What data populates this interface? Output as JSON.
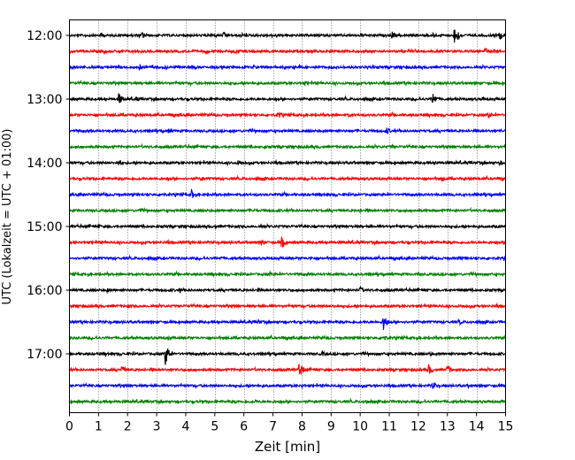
{
  "chart_data": {
    "type": "line",
    "title": "",
    "xlabel": "Zeit  [min]",
    "ylabel": "UTC (Lokalzeit = UTC + 01:00)",
    "xlim": [
      0,
      15
    ],
    "x_ticks": [
      "0",
      "1",
      "2",
      "3",
      "4",
      "5",
      "6",
      "7",
      "8",
      "9",
      "10",
      "11",
      "12",
      "13",
      "14",
      "15"
    ],
    "y_ticks": [
      "12:00",
      "13:00",
      "14:00",
      "15:00",
      "16:00",
      "17:00"
    ],
    "grid": "vertical dotted at each minute",
    "trace_interval_min": 15,
    "color_cycle": [
      "#000000",
      "#ff0000",
      "#0000ff",
      "#008000"
    ],
    "series": [
      {
        "start": "12:00",
        "events": [
          [
            1.1,
            0.25
          ],
          [
            2.5,
            0.35
          ],
          [
            5.3,
            0.3
          ],
          [
            11.1,
            0.4
          ],
          [
            12.5,
            0.35
          ],
          [
            13.25,
            1.0
          ],
          [
            14.8,
            0.4
          ]
        ]
      },
      {
        "start": "12:15",
        "events": [
          [
            1.2,
            0.2
          ],
          [
            4.7,
            0.25
          ],
          [
            14.3,
            0.35
          ]
        ]
      },
      {
        "start": "12:30",
        "events": [
          [
            2.4,
            0.25
          ],
          [
            4.1,
            0.2
          ],
          [
            9.0,
            0.2
          ]
        ]
      },
      {
        "start": "12:45",
        "events": [
          [
            1.8,
            0.2
          ],
          [
            5.5,
            0.2
          ],
          [
            8.1,
            0.2
          ]
        ]
      },
      {
        "start": "13:00",
        "events": [
          [
            1.7,
            0.6
          ],
          [
            2.3,
            0.25
          ],
          [
            12.5,
            0.6
          ],
          [
            14.2,
            0.2
          ]
        ]
      },
      {
        "start": "13:15",
        "events": [
          [
            7.2,
            0.3
          ],
          [
            9.6,
            0.2
          ],
          [
            14.4,
            0.3
          ]
        ]
      },
      {
        "start": "13:30",
        "events": [
          [
            3.4,
            0.2
          ],
          [
            10.9,
            0.4
          ],
          [
            14.8,
            0.2
          ]
        ]
      },
      {
        "start": "13:45",
        "events": [
          [
            6.7,
            0.2
          ],
          [
            11.1,
            0.2
          ]
        ]
      },
      {
        "start": "14:00",
        "events": [
          [
            1.7,
            0.35
          ],
          [
            5.8,
            0.3
          ],
          [
            12.6,
            0.2
          ],
          [
            14.8,
            0.25
          ]
        ]
      },
      {
        "start": "14:15",
        "events": [
          [
            4.5,
            0.25
          ],
          [
            12.8,
            0.3
          ]
        ]
      },
      {
        "start": "14:30",
        "events": [
          [
            3.2,
            0.25
          ],
          [
            4.2,
            0.45
          ],
          [
            13.9,
            0.2
          ]
        ]
      },
      {
        "start": "14:45",
        "events": [
          [
            2.4,
            0.25
          ],
          [
            6.3,
            0.25
          ],
          [
            10.0,
            0.2
          ]
        ]
      },
      {
        "start": "15:00",
        "events": [
          [
            1.0,
            0.2
          ],
          [
            5.0,
            0.2
          ],
          [
            6.6,
            0.25
          ],
          [
            9.4,
            0.2
          ]
        ]
      },
      {
        "start": "15:15",
        "events": [
          [
            6.6,
            0.3
          ],
          [
            7.3,
            0.55
          ],
          [
            11.6,
            0.2
          ]
        ]
      },
      {
        "start": "15:30",
        "events": [
          [
            5.2,
            0.2
          ],
          [
            8.3,
            0.2
          ],
          [
            13.4,
            0.2
          ]
        ]
      },
      {
        "start": "15:45",
        "events": [
          [
            6.9,
            0.2
          ],
          [
            8.2,
            0.2
          ],
          [
            12.0,
            0.2
          ]
        ]
      },
      {
        "start": "16:00",
        "events": [
          [
            1.3,
            0.2
          ],
          [
            3.8,
            0.25
          ],
          [
            6.5,
            0.25
          ],
          [
            10.0,
            0.35
          ]
        ]
      },
      {
        "start": "16:15",
        "events": [
          [
            2.0,
            0.2
          ],
          [
            9.1,
            0.2
          ],
          [
            12.2,
            0.2
          ]
        ]
      },
      {
        "start": "16:30",
        "events": [
          [
            6.5,
            0.25
          ],
          [
            10.8,
            0.75
          ],
          [
            13.4,
            0.3
          ]
        ]
      },
      {
        "start": "16:45",
        "events": [
          [
            3.4,
            0.2
          ],
          [
            10.8,
            0.35
          ]
        ]
      },
      {
        "start": "17:00",
        "events": [
          [
            3.3,
            1.0
          ],
          [
            8.7,
            0.25
          ],
          [
            12.4,
            0.2
          ]
        ]
      },
      {
        "start": "17:15",
        "events": [
          [
            1.8,
            0.4
          ],
          [
            7.9,
            0.8
          ],
          [
            12.35,
            0.5
          ],
          [
            13.0,
            0.5
          ]
        ]
      },
      {
        "start": "17:30",
        "events": [
          [
            8.0,
            0.2
          ],
          [
            12.5,
            0.4
          ],
          [
            13.7,
            0.2
          ]
        ]
      },
      {
        "start": "17:45",
        "events": [
          [
            6.4,
            0.2
          ],
          [
            10.2,
            0.25
          ]
        ]
      }
    ]
  }
}
